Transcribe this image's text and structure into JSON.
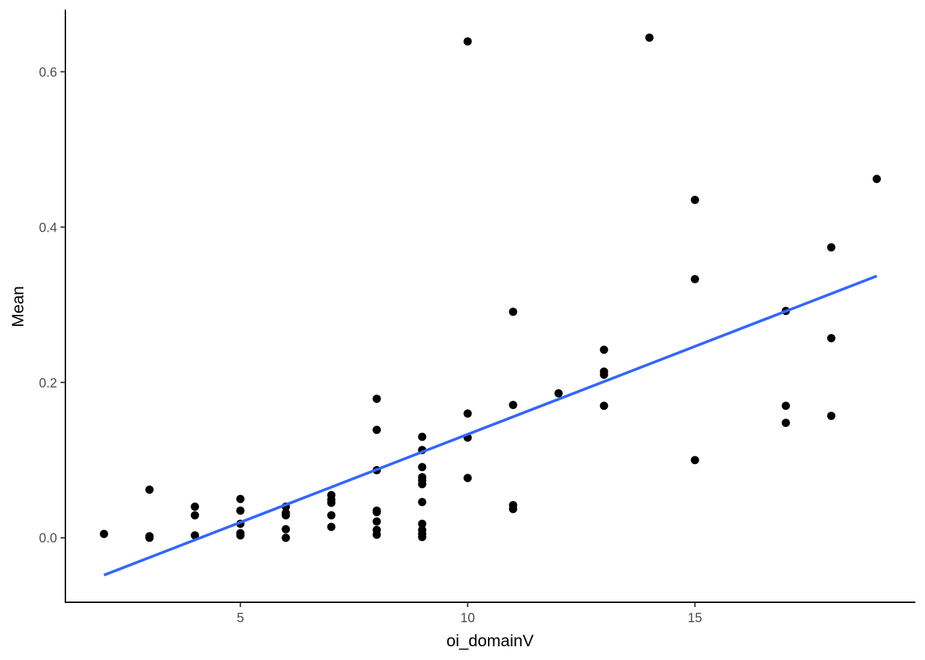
{
  "chart_data": {
    "type": "scatter",
    "title": "",
    "xlabel": "oi_domainV",
    "ylabel": "Mean",
    "xlim": [
      1.15,
      19.85
    ],
    "ylim": [
      -0.083,
      0.68
    ],
    "x_ticks": [
      5,
      10,
      15
    ],
    "y_ticks": [
      0.0,
      0.2,
      0.4,
      0.6
    ],
    "x_tick_labels": [
      "5",
      "10",
      "15"
    ],
    "y_tick_labels": [
      "0.0",
      "0.2",
      "0.4",
      "0.6"
    ],
    "grid": false,
    "legend": "none",
    "colors": {
      "points": "#000000",
      "trend_line": "#3366FF",
      "axis": "#000000",
      "tick_labels": "#4d4d4d"
    },
    "points": [
      {
        "x": 2,
        "y": 0.005
      },
      {
        "x": 3,
        "y": 0.062
      },
      {
        "x": 3,
        "y": 0.002
      },
      {
        "x": 3,
        "y": 0.0
      },
      {
        "x": 4,
        "y": 0.04
      },
      {
        "x": 4,
        "y": 0.029
      },
      {
        "x": 4,
        "y": 0.003
      },
      {
        "x": 5,
        "y": 0.05
      },
      {
        "x": 5,
        "y": 0.035
      },
      {
        "x": 5,
        "y": 0.018
      },
      {
        "x": 5,
        "y": 0.006
      },
      {
        "x": 5,
        "y": 0.003
      },
      {
        "x": 6,
        "y": 0.04
      },
      {
        "x": 6,
        "y": 0.032
      },
      {
        "x": 6,
        "y": 0.029
      },
      {
        "x": 6,
        "y": 0.011
      },
      {
        "x": 6,
        "y": 0.0
      },
      {
        "x": 7,
        "y": 0.055
      },
      {
        "x": 7,
        "y": 0.049
      },
      {
        "x": 7,
        "y": 0.045
      },
      {
        "x": 7,
        "y": 0.029
      },
      {
        "x": 7,
        "y": 0.014
      },
      {
        "x": 8,
        "y": 0.179
      },
      {
        "x": 8,
        "y": 0.139
      },
      {
        "x": 8,
        "y": 0.087
      },
      {
        "x": 8,
        "y": 0.035
      },
      {
        "x": 8,
        "y": 0.033
      },
      {
        "x": 8,
        "y": 0.021
      },
      {
        "x": 8,
        "y": 0.01
      },
      {
        "x": 8,
        "y": 0.004
      },
      {
        "x": 9,
        "y": 0.13
      },
      {
        "x": 9,
        "y": 0.113
      },
      {
        "x": 9,
        "y": 0.091
      },
      {
        "x": 9,
        "y": 0.078
      },
      {
        "x": 9,
        "y": 0.074
      },
      {
        "x": 9,
        "y": 0.069
      },
      {
        "x": 9,
        "y": 0.046
      },
      {
        "x": 9,
        "y": 0.018
      },
      {
        "x": 9,
        "y": 0.01
      },
      {
        "x": 9,
        "y": 0.005
      },
      {
        "x": 9,
        "y": 0.001
      },
      {
        "x": 10,
        "y": 0.639
      },
      {
        "x": 10,
        "y": 0.16
      },
      {
        "x": 10,
        "y": 0.129
      },
      {
        "x": 10,
        "y": 0.077
      },
      {
        "x": 11,
        "y": 0.291
      },
      {
        "x": 11,
        "y": 0.171
      },
      {
        "x": 11,
        "y": 0.042
      },
      {
        "x": 11,
        "y": 0.037
      },
      {
        "x": 12,
        "y": 0.186
      },
      {
        "x": 13,
        "y": 0.242
      },
      {
        "x": 13,
        "y": 0.214
      },
      {
        "x": 13,
        "y": 0.21
      },
      {
        "x": 13,
        "y": 0.17
      },
      {
        "x": 14,
        "y": 0.644
      },
      {
        "x": 15,
        "y": 0.435
      },
      {
        "x": 15,
        "y": 0.333
      },
      {
        "x": 15,
        "y": 0.1
      },
      {
        "x": 17,
        "y": 0.292
      },
      {
        "x": 17,
        "y": 0.17
      },
      {
        "x": 17,
        "y": 0.148
      },
      {
        "x": 18,
        "y": 0.374
      },
      {
        "x": 18,
        "y": 0.257
      },
      {
        "x": 18,
        "y": 0.157
      },
      {
        "x": 19,
        "y": 0.462
      }
    ],
    "trend_line": {
      "type": "linear",
      "x": [
        2,
        19
      ],
      "y": [
        -0.048,
        0.337
      ]
    }
  }
}
